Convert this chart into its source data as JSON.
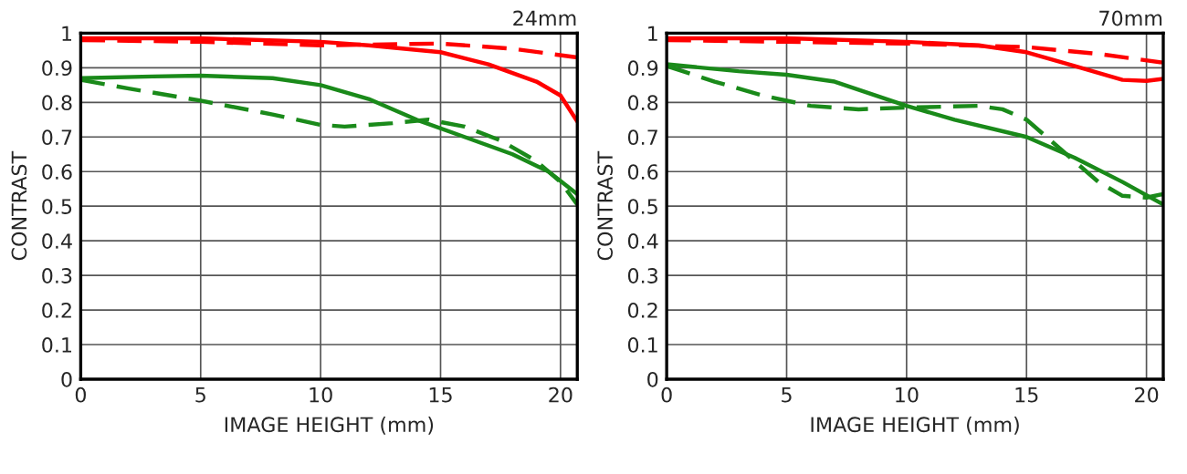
{
  "chart_data": [
    {
      "type": "line",
      "title": "24mm",
      "xlabel": "IMAGE HEIGHT (mm)",
      "ylabel": "CONTRAST",
      "xlim": [
        0,
        20.7
      ],
      "ylim": [
        0,
        1
      ],
      "xticks": [
        0,
        5,
        10,
        15,
        20
      ],
      "yticks": [
        0,
        0.1,
        0.2,
        0.3,
        0.4,
        0.5,
        0.6,
        0.7,
        0.8,
        0.9,
        1
      ],
      "grid": true,
      "series": [
        {
          "color": "#ff0000",
          "line_style": "solid",
          "x": [
            0,
            5,
            10,
            12,
            15,
            17,
            19,
            20,
            20.7
          ],
          "values": [
            0.985,
            0.985,
            0.975,
            0.965,
            0.945,
            0.91,
            0.86,
            0.82,
            0.745
          ]
        },
        {
          "color": "#ff0000",
          "line_style": "dashed",
          "x": [
            0,
            5,
            10,
            15,
            18,
            20.7
          ],
          "values": [
            0.98,
            0.975,
            0.965,
            0.97,
            0.955,
            0.93
          ]
        },
        {
          "color": "#1a8a1a",
          "line_style": "solid",
          "x": [
            0,
            3,
            5,
            8,
            10,
            12,
            14,
            16,
            18,
            19.5,
            20.7
          ],
          "values": [
            0.87,
            0.875,
            0.877,
            0.87,
            0.85,
            0.81,
            0.75,
            0.7,
            0.65,
            0.6,
            0.535
          ]
        },
        {
          "color": "#1a8a1a",
          "line_style": "dashed",
          "x": [
            0,
            2,
            5,
            8,
            10,
            11,
            13,
            14.5,
            16,
            17.5,
            19,
            20,
            20.7
          ],
          "values": [
            0.865,
            0.84,
            0.805,
            0.765,
            0.735,
            0.73,
            0.74,
            0.75,
            0.73,
            0.69,
            0.63,
            0.57,
            0.505
          ]
        }
      ]
    },
    {
      "type": "line",
      "title": "70mm",
      "xlabel": "IMAGE HEIGHT (mm)",
      "ylabel": "CONTRAST",
      "xlim": [
        0,
        20.7
      ],
      "ylim": [
        0,
        1
      ],
      "xticks": [
        0,
        5,
        10,
        15,
        20
      ],
      "yticks": [
        0,
        0.1,
        0.2,
        0.3,
        0.4,
        0.5,
        0.6,
        0.7,
        0.8,
        0.9,
        1
      ],
      "grid": true,
      "series": [
        {
          "color": "#ff0000",
          "line_style": "solid",
          "x": [
            0,
            5,
            10,
            13,
            15,
            17,
            19,
            20,
            20.7
          ],
          "values": [
            0.985,
            0.985,
            0.975,
            0.965,
            0.945,
            0.905,
            0.865,
            0.862,
            0.868
          ]
        },
        {
          "color": "#ff0000",
          "line_style": "dashed",
          "x": [
            0,
            5,
            10,
            15,
            18,
            20.7
          ],
          "values": [
            0.98,
            0.975,
            0.97,
            0.96,
            0.94,
            0.915
          ]
        },
        {
          "color": "#1a8a1a",
          "line_style": "solid",
          "x": [
            0,
            3,
            5,
            7,
            10,
            12,
            15,
            17,
            19,
            20.7
          ],
          "values": [
            0.91,
            0.89,
            0.88,
            0.86,
            0.79,
            0.75,
            0.7,
            0.64,
            0.57,
            0.505
          ]
        },
        {
          "color": "#1a8a1a",
          "line_style": "dashed",
          "x": [
            0,
            2,
            4,
            6,
            8,
            10,
            13,
            14,
            15,
            16,
            17,
            18,
            19,
            20,
            20.7
          ],
          "values": [
            0.905,
            0.86,
            0.82,
            0.79,
            0.78,
            0.785,
            0.79,
            0.78,
            0.75,
            0.69,
            0.63,
            0.57,
            0.53,
            0.525,
            0.535
          ]
        }
      ]
    }
  ]
}
